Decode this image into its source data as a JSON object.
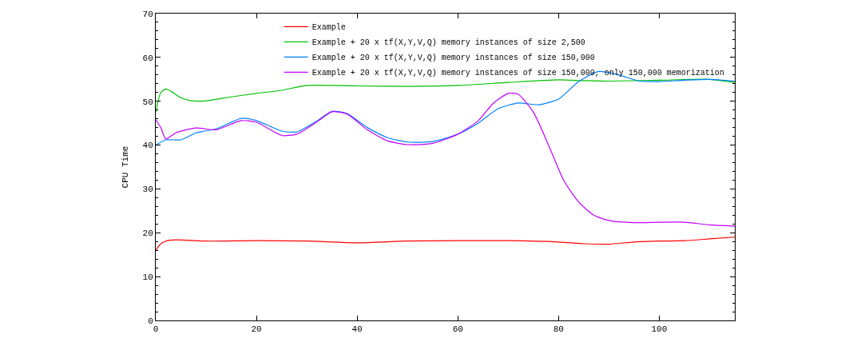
{
  "chart_data": {
    "type": "line",
    "ylabel": "CPU Time",
    "xlim": [
      0,
      115
    ],
    "xticks": [
      0,
      20,
      40,
      60,
      80,
      100
    ],
    "ylim": [
      0,
      70
    ],
    "yticks": [
      0,
      10,
      20,
      30,
      40,
      50,
      60,
      70
    ],
    "legend": "top right",
    "marker": "none",
    "line_style": "solid",
    "series": [
      {
        "name": "Example",
        "color": "#ff0000",
        "x": [
          0,
          1,
          2,
          4,
          6,
          10,
          20,
          30,
          40,
          50,
          60,
          70,
          80,
          85,
          90,
          95,
          100,
          105,
          110,
          115
        ],
        "values": [
          16,
          17.5,
          18.1,
          18.4,
          18.3,
          18.1,
          18.2,
          18.1,
          17.7,
          18.1,
          18.2,
          18.2,
          17.9,
          17.5,
          17.4,
          17.9,
          18.1,
          18.2,
          18.6,
          19
        ]
      },
      {
        "name": "Example + 20 x tf(X,Y,V,Q) memory instances of size 2,500",
        "color": "#00c000",
        "x": [
          0,
          1,
          2,
          3,
          5,
          7,
          10,
          15,
          20,
          25,
          30,
          40,
          50,
          60,
          70,
          80,
          85,
          90,
          100,
          110,
          115
        ],
        "values": [
          47.5,
          52,
          52.8,
          52.3,
          50.8,
          50.1,
          50.1,
          51,
          51.8,
          52.5,
          53.6,
          53.5,
          53.4,
          53.6,
          54.3,
          54.9,
          54.7,
          54.6,
          54.8,
          55,
          54.3
        ]
      },
      {
        "name": "Example + 20 x tf(X,Y,V,Q) memory instances of size 150,000",
        "color": "#0080ff",
        "x": [
          0,
          2,
          5,
          8,
          12,
          17,
          20,
          25,
          28,
          32,
          35,
          38,
          42,
          46,
          50,
          55,
          60,
          64,
          68,
          72,
          76,
          80,
          84,
          88,
          92,
          96,
          100,
          105,
          110,
          115
        ],
        "values": [
          40,
          41.2,
          41.2,
          42.8,
          43.7,
          46.1,
          45.6,
          43.2,
          43,
          45.5,
          47.7,
          47.2,
          44,
          41.7,
          40.7,
          40.8,
          42.5,
          45,
          48.3,
          49.6,
          49.2,
          50.5,
          54.5,
          56.8,
          56,
          54.6,
          54.5,
          54.8,
          55,
          54.6
        ]
      },
      {
        "name": "Example + 20 x tf(X,Y,V,Q) memory instances of size 150,000, only 150,000 memorization",
        "color": "#c000ff",
        "x": [
          0,
          1,
          2,
          4,
          8,
          12,
          17,
          20,
          25,
          28,
          32,
          35,
          38,
          42,
          46,
          50,
          55,
          60,
          64,
          67,
          70,
          72,
          75,
          78,
          81,
          84,
          87,
          90,
          95,
          100,
          105,
          110,
          115
        ],
        "values": [
          45.8,
          44,
          41.4,
          42.8,
          43.9,
          43.5,
          45.6,
          45.2,
          42.2,
          42.5,
          45.3,
          47.6,
          47.1,
          43.5,
          41,
          40.1,
          40.4,
          42.5,
          45.5,
          49.5,
          51.8,
          51.6,
          47.5,
          40,
          32,
          27,
          24,
          22.8,
          22.3,
          22.4,
          22.4,
          21.8,
          21.5
        ]
      }
    ]
  }
}
